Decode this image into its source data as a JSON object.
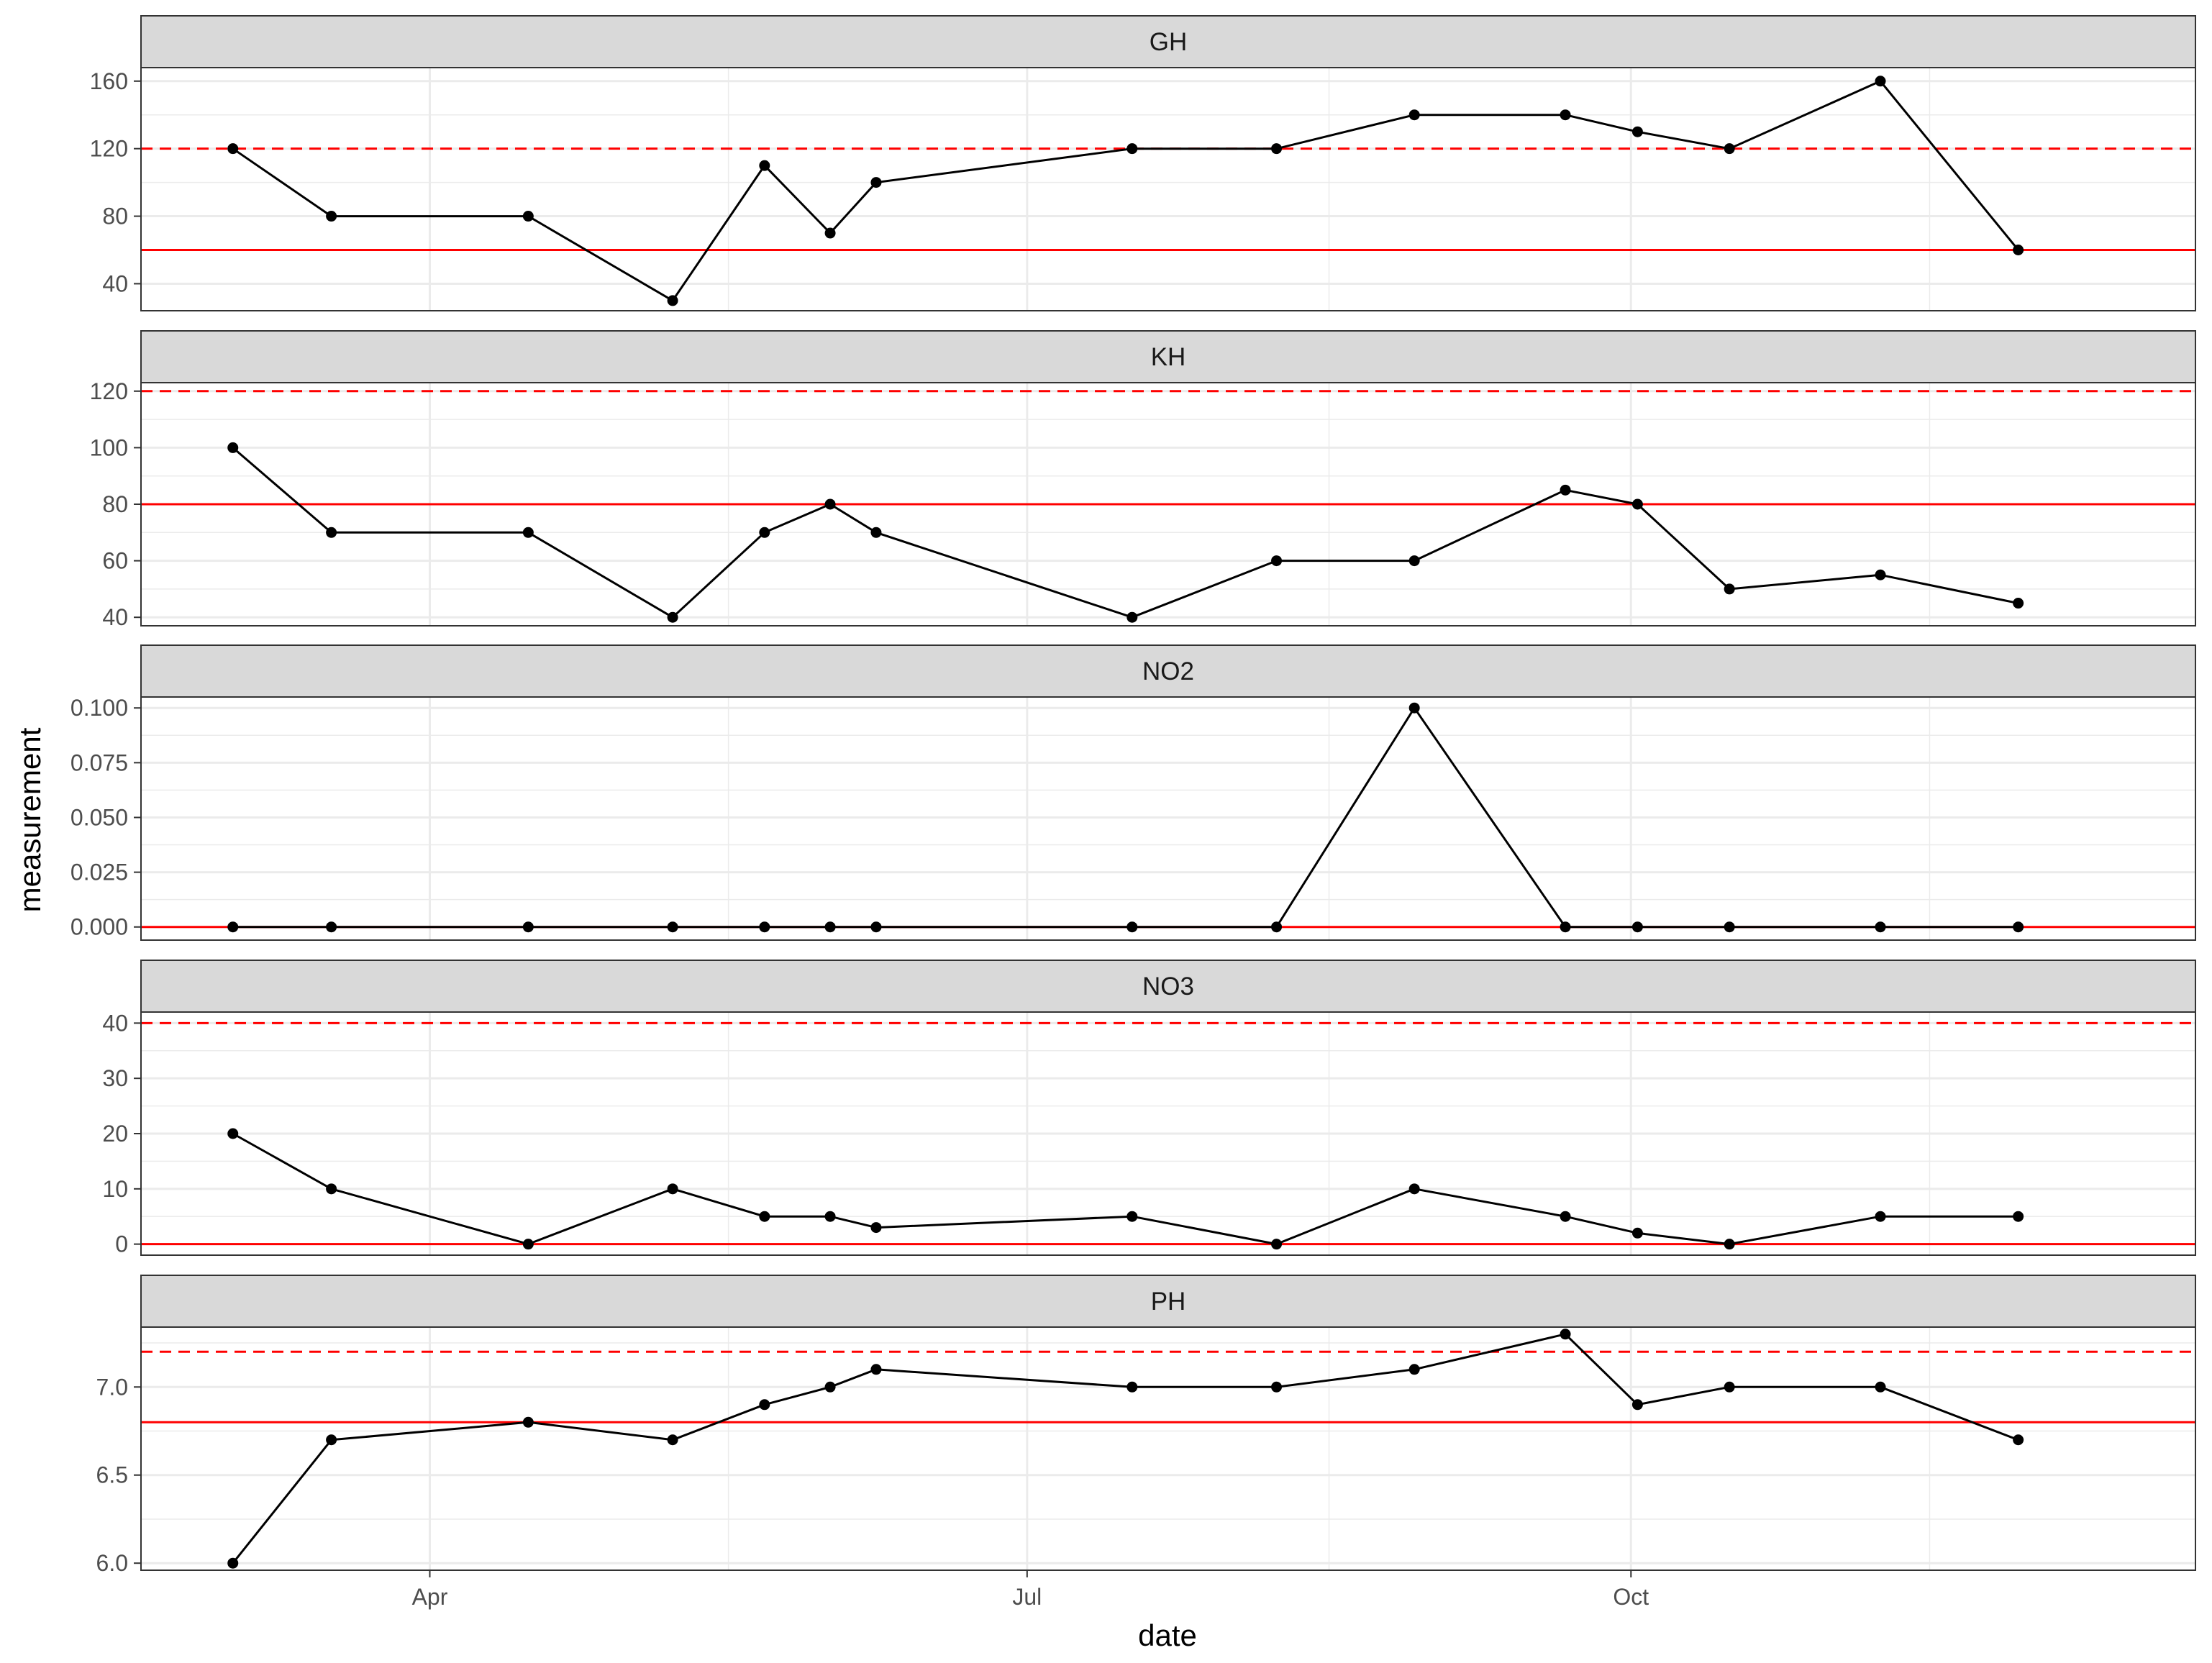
{
  "chart_data": {
    "type": "line",
    "layout": "facets",
    "xlabel": "date",
    "ylabel": "measurement",
    "x_axis": {
      "type": "date",
      "ticks": [
        "Apr",
        "Jul",
        "Oct"
      ],
      "tick_dates": [
        "2023-04-01",
        "2023-07-01",
        "2023-10-01"
      ],
      "range": [
        "2023-02-16",
        "2023-12-26"
      ]
    },
    "grid": true,
    "colors": {
      "series": "#000000",
      "reference": "#ff0000",
      "strip": "#d9d9d9",
      "grid": "#ebebeb"
    },
    "dates": [
      "2023-03-02",
      "2023-03-17",
      "2023-04-16",
      "2023-05-08",
      "2023-05-22",
      "2023-06-01",
      "2023-06-08",
      "2023-07-17",
      "2023-08-08",
      "2023-08-29",
      "2023-09-21",
      "2023-10-02",
      "2023-10-16",
      "2023-11-08",
      "2023-11-29"
    ],
    "facets": [
      {
        "name": "GH",
        "values": [
          120,
          80,
          80,
          30,
          110,
          70,
          100,
          120,
          120,
          140,
          140,
          130,
          120,
          160,
          60
        ],
        "ylim": [
          24,
          168
        ],
        "y_ticks": [
          40,
          80,
          120,
          160
        ],
        "y_tick_labels": [
          "40",
          "80",
          "120",
          "160"
        ],
        "ref_solid": 60,
        "ref_dashed": 120
      },
      {
        "name": "KH",
        "values": [
          100,
          70,
          70,
          40,
          70,
          80,
          70,
          40,
          60,
          60,
          85,
          80,
          50,
          55,
          45
        ],
        "ylim": [
          37,
          123
        ],
        "y_ticks": [
          40,
          60,
          80,
          100,
          120
        ],
        "y_tick_labels": [
          "40",
          "60",
          "80",
          "100",
          "120"
        ],
        "ref_solid": 80,
        "ref_dashed": 120
      },
      {
        "name": "NO2",
        "values": [
          0,
          0,
          0,
          0,
          0,
          0,
          0,
          0,
          0,
          0.1,
          0,
          0,
          0,
          0,
          0
        ],
        "ylim": [
          -0.006,
          0.105
        ],
        "y_ticks": [
          0,
          0.025,
          0.05,
          0.075,
          0.1
        ],
        "y_tick_labels": [
          "0.000",
          "0.025",
          "0.050",
          "0.075",
          "0.100"
        ],
        "ref_solid": 0
      },
      {
        "name": "NO3",
        "values": [
          20,
          10,
          0,
          10,
          5,
          5,
          3,
          5,
          0,
          10,
          5,
          2,
          0,
          5,
          5
        ],
        "ylim": [
          -2,
          42
        ],
        "y_ticks": [
          0,
          10,
          20,
          30,
          40
        ],
        "y_tick_labels": [
          "0",
          "10",
          "20",
          "30",
          "40"
        ],
        "ref_solid": 0,
        "ref_dashed": 40
      },
      {
        "name": "PH",
        "values": [
          6.0,
          6.7,
          6.8,
          6.7,
          6.9,
          7.0,
          7.1,
          7.0,
          7.0,
          7.1,
          7.3,
          6.9,
          7.0,
          7.0,
          6.7
        ],
        "ylim": [
          5.96,
          7.34
        ],
        "y_ticks": [
          6.0,
          6.5,
          7.0
        ],
        "y_tick_labels": [
          "6.0",
          "6.5",
          "7.0"
        ],
        "ref_solid": 6.8,
        "ref_dashed": 7.2
      }
    ]
  }
}
